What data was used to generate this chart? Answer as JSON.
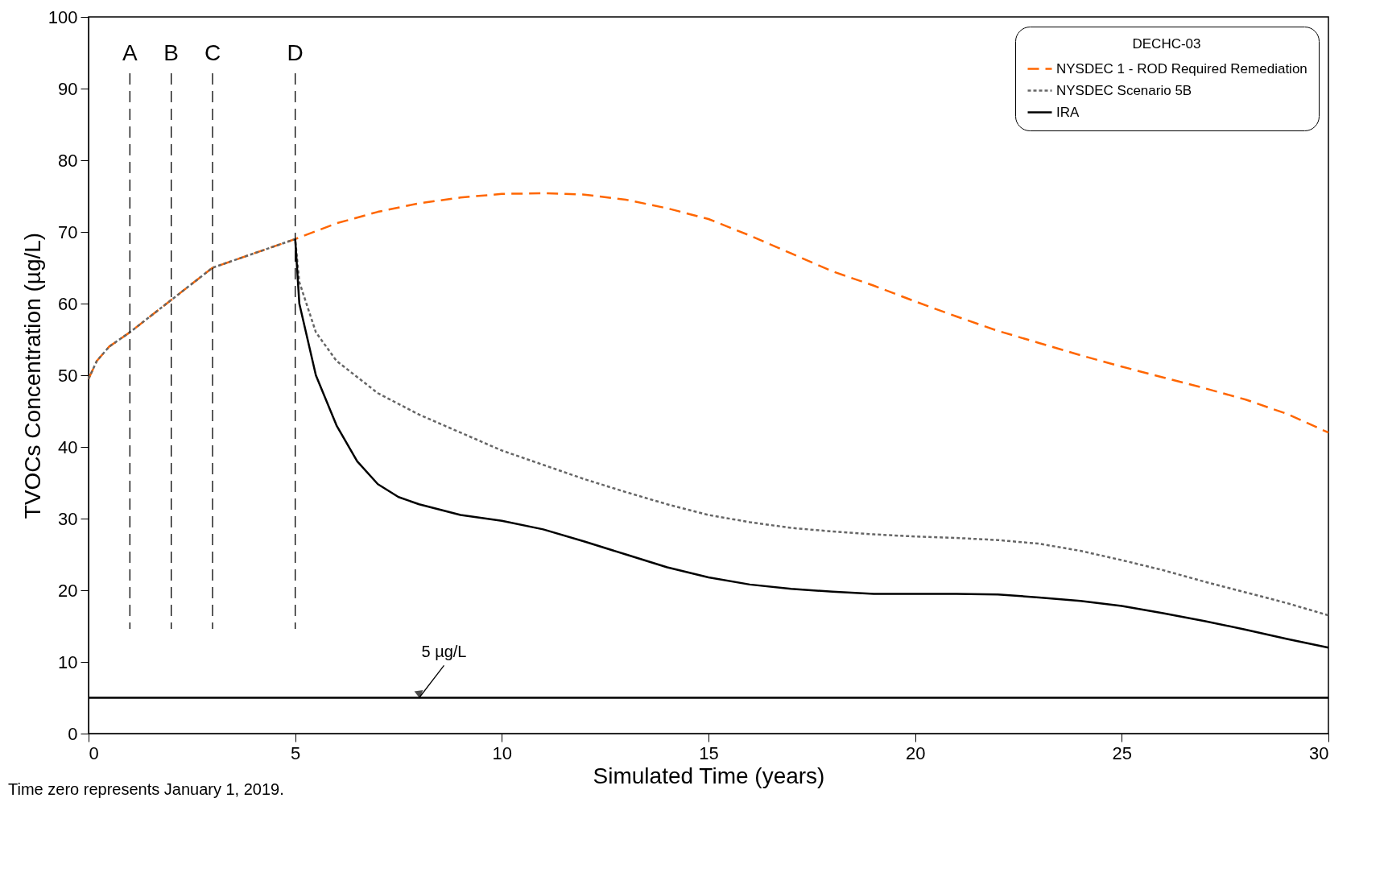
{
  "chart_data": {
    "type": "line",
    "xlabel": "Simulated Time (years)",
    "ylabel": "TVOCs Concentration (µg/L)",
    "legend_title": "DECHC-03",
    "xlim": [
      0,
      30
    ],
    "ylim": [
      0,
      100
    ],
    "xticks": [
      0,
      5,
      10,
      15,
      20,
      25,
      30
    ],
    "yticks": [
      0,
      10,
      20,
      30,
      40,
      50,
      60,
      70,
      80,
      90,
      100
    ],
    "grid": false,
    "legend": "top right",
    "marker": "none",
    "series": [
      {
        "name": "NYSDEC 1 - ROD Required Remediation",
        "color": "#ff6600",
        "line_style": "dashed",
        "x": [
          0,
          0.2,
          0.5,
          1,
          2,
          3,
          4,
          5,
          6,
          7,
          8,
          9,
          10,
          11,
          12,
          13,
          14,
          15,
          16,
          17,
          18,
          19,
          20,
          21,
          22,
          23,
          24,
          25,
          26,
          27,
          28,
          29,
          30
        ],
        "values": [
          49.5,
          52,
          54,
          56,
          60.5,
          65,
          67,
          69,
          71.2,
          72.8,
          74,
          74.8,
          75.3,
          75.4,
          75.2,
          74.5,
          73.3,
          71.8,
          69.5,
          67,
          64.5,
          62.5,
          60.3,
          58.2,
          56.2,
          54.5,
          52.8,
          51.2,
          49.7,
          48.2,
          46.6,
          44.6,
          42
        ]
      },
      {
        "name": "NYSDEC Scenario 5B",
        "color": "#666666",
        "line_style": "dotted",
        "x": [
          0,
          0.2,
          0.5,
          1,
          2,
          3,
          4,
          5,
          5.1,
          5.5,
          6,
          7,
          8,
          9,
          10,
          11,
          12,
          13,
          14,
          15,
          16,
          17,
          18,
          19,
          20,
          21,
          22,
          23,
          24,
          25,
          26,
          27,
          28,
          29,
          30
        ],
        "values": [
          49.5,
          52,
          54,
          56,
          60.5,
          65,
          67,
          69,
          63,
          56,
          52,
          47.5,
          44.5,
          42,
          39.5,
          37.5,
          35.5,
          33.7,
          32,
          30.5,
          29.5,
          28.7,
          28.2,
          27.8,
          27.5,
          27.3,
          27,
          26.5,
          25.5,
          24.2,
          22.8,
          21.2,
          19.7,
          18.2,
          16.5
        ]
      },
      {
        "name": "IRA",
        "color": "#000000",
        "line_style": "solid",
        "x": [
          5,
          5.1,
          5.5,
          6,
          6.5,
          7,
          7.5,
          8,
          9,
          10,
          11,
          12,
          13,
          14,
          15,
          16,
          17,
          18,
          19,
          20,
          21,
          22,
          23,
          24,
          25,
          26,
          27,
          28,
          29,
          30
        ],
        "values": [
          69,
          60,
          50,
          43,
          38,
          34.8,
          33,
          32,
          30.5,
          29.7,
          28.5,
          26.8,
          25,
          23.2,
          21.8,
          20.8,
          20.2,
          19.8,
          19.5,
          19.5,
          19.5,
          19.4,
          19,
          18.5,
          17.8,
          16.8,
          15.7,
          14.5,
          13.2,
          12
        ]
      }
    ],
    "ref_lines": [
      {
        "axis": "x",
        "value": 1,
        "label": "A",
        "color": "#000000",
        "line_style": "dashed"
      },
      {
        "axis": "x",
        "value": 2,
        "label": "B",
        "color": "#000000",
        "line_style": "dashed"
      },
      {
        "axis": "x",
        "value": 3,
        "label": "C",
        "color": "#000000",
        "line_style": "dashed"
      },
      {
        "axis": "x",
        "value": 5,
        "label": "D",
        "color": "#000000",
        "line_style": "dashed"
      },
      {
        "axis": "y",
        "value": 5,
        "color": "#000000",
        "line_style": "solid"
      }
    ],
    "annotations": [
      {
        "text": "5 µg/L",
        "x": 8,
        "y": 5
      },
      "Time zero represents January 1, 2019."
    ]
  }
}
